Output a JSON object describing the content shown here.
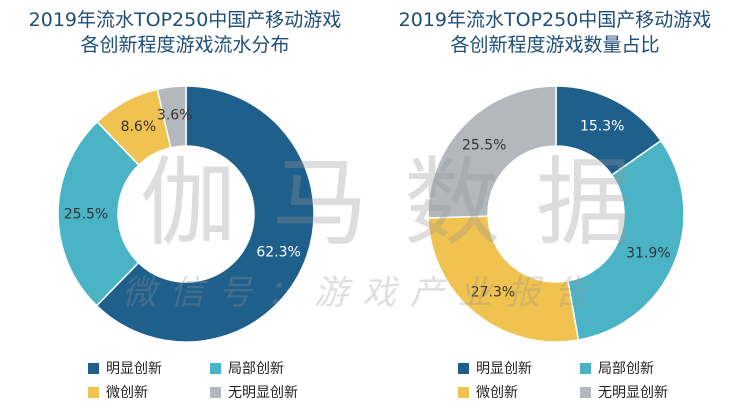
{
  "chart_data": [
    {
      "type": "pie",
      "title_lines": [
        "2019年流水TOP250中国产移动游戏",
        "各创新程度游戏流水分布"
      ],
      "categories": [
        "明显创新",
        "局部创新",
        "微创新",
        "无明显创新"
      ],
      "values": [
        62.3,
        25.5,
        8.6,
        3.6
      ],
      "labels": [
        "62.3%",
        "25.5%",
        "8.6%",
        "3.6%"
      ],
      "colors": [
        "#1f5f8b",
        "#4bb3c6",
        "#f0c24f",
        "#b4b8bd"
      ],
      "donut": true,
      "legend_position": "bottom"
    },
    {
      "type": "pie",
      "title_lines": [
        "2019年流水TOP250中国产移动游戏",
        "各创新程度游戏数量占比"
      ],
      "categories": [
        "明显创新",
        "局部创新",
        "微创新",
        "无明显创新"
      ],
      "values": [
        15.3,
        31.9,
        27.3,
        25.5
      ],
      "labels": [
        "15.3%",
        "31.9%",
        "27.3%",
        "25.5%"
      ],
      "colors": [
        "#1f5f8b",
        "#4bb3c6",
        "#f0c24f",
        "#b4b8bd"
      ],
      "donut": true,
      "legend_position": "bottom"
    }
  ],
  "watermark": {
    "main": "伽马数据",
    "sub": "微信号：游戏产业报告"
  }
}
